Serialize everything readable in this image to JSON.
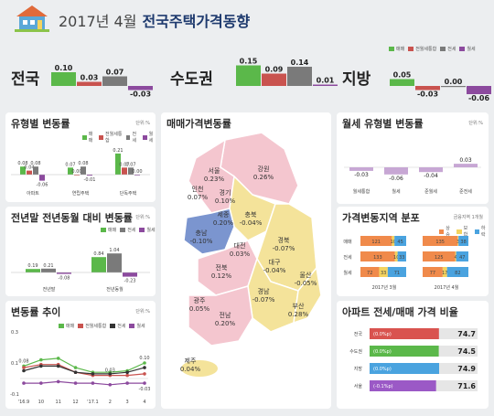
{
  "header": {
    "title_date": "2017년 4월",
    "title_main": "전국주택가격동향"
  },
  "legend_labels": [
    "매매",
    "전월세통합",
    "전세",
    "월세"
  ],
  "colors": {
    "maemae": "#5bb84a",
    "jeonwolse": "#c9534f",
    "jeonse": "#7a7a7a",
    "wolse": "#8c4a9e",
    "map_pink": "#f4c6cf",
    "map_yellow": "#f4e39a",
    "map_blue": "#7b95cf",
    "bg": "#eceef0"
  },
  "summary": [
    {
      "region": "전국",
      "values": [
        0.1,
        0.03,
        0.07,
        -0.03
      ],
      "labels": [
        "0.10",
        "0.03",
        "0.07",
        "-0.03"
      ]
    },
    {
      "region": "수도권",
      "values": [
        0.15,
        0.09,
        0.14,
        0.01
      ],
      "labels": [
        "0.15",
        "0.09",
        "0.14",
        "0.01"
      ]
    },
    {
      "region": "지방",
      "values": [
        0.05,
        -0.03,
        0.0,
        -0.06
      ],
      "labels": [
        "0.05",
        "-0.03",
        "0.00",
        "-0.06"
      ]
    }
  ],
  "panels": {
    "type_change": {
      "title": "유형별 변동률",
      "unit": "단위:%"
    },
    "yearend": {
      "title": "전년말 전년동월 대비 변동률",
      "unit": "단위:%"
    },
    "trend": {
      "title": "변동률 추이",
      "unit": "단위:%"
    },
    "map": {
      "title": "매매가격변동률"
    },
    "wolse_type": {
      "title": "월세 유형별 변동률",
      "unit": "단위:%"
    },
    "distribution": {
      "title": "가격변동지역 분포",
      "unit": "금융지역 1개월"
    },
    "ratio": {
      "title": "아파트 전세/매매 가격 비율"
    }
  },
  "chart_data": [
    {
      "type": "bar",
      "title": "유형별 변동률",
      "categories": [
        "아파트",
        "연립주택",
        "단독주택"
      ],
      "series": [
        {
          "name": "매매",
          "values": [
            0.08,
            0.07,
            0.21
          ]
        },
        {
          "name": "전월세통합",
          "values": [
            0.04,
            0.0,
            0.07
          ]
        },
        {
          "name": "전세",
          "values": [
            0.08,
            0.08,
            0.07
          ]
        },
        {
          "name": "월세",
          "values": [
            -0.06,
            -0.01,
            0.0
          ]
        }
      ],
      "labels": [
        [
          "0.08",
          "0.04",
          "0.08",
          "-0.06"
        ],
        [
          "0.07",
          "0.00",
          "0.08",
          "-0.01"
        ],
        [
          "0.21",
          "0.07",
          "0.07",
          "0.00"
        ]
      ]
    },
    {
      "type": "bar",
      "title": "전년말 전년동월 대비 변동률",
      "categories": [
        "전년말",
        "전년동월"
      ],
      "series": [
        {
          "name": "매매",
          "values": [
            0.19,
            0.84
          ]
        },
        {
          "name": "전세",
          "values": [
            0.21,
            1.04
          ]
        },
        {
          "name": "월세",
          "values": [
            -0.08,
            -0.23
          ]
        }
      ],
      "labels": [
        [
          "0.19",
          "0.21",
          "-0.08"
        ],
        [
          "0.84",
          "1.04",
          "-0.23"
        ]
      ]
    },
    {
      "type": "line",
      "title": "변동률 추이",
      "x": [
        "'16.9",
        "10",
        "11",
        "12",
        "'17.1",
        "2",
        "3",
        "4"
      ],
      "ylim": [
        -0.1,
        0.3
      ],
      "yticks": [
        "0.3",
        "0.1",
        "-0.1"
      ],
      "series": [
        {
          "name": "매매",
          "values": [
            0.08,
            0.12,
            0.13,
            0.07,
            0.04,
            0.04,
            0.05,
            0.1
          ]
        },
        {
          "name": "전월세통합",
          "values": [
            0.07,
            0.09,
            0.09,
            0.04,
            0.02,
            0.02,
            0.02,
            0.03
          ]
        },
        {
          "name": "전세",
          "values": [
            0.05,
            0.08,
            0.08,
            0.04,
            0.03,
            0.03,
            0.04,
            0.07
          ]
        },
        {
          "name": "월세",
          "values": [
            -0.03,
            -0.03,
            -0.02,
            -0.03,
            -0.03,
            -0.04,
            -0.03,
            -0.03
          ]
        }
      ],
      "labels": {
        "first": "0.08",
        "last": "0.10",
        "last_low": "-0.03",
        "mid": "0.03"
      }
    },
    {
      "type": "bar",
      "title": "월세 유형별 변동률",
      "categories": [
        "월세통합",
        "월세",
        "준월세",
        "준전세"
      ],
      "values": [
        -0.03,
        -0.06,
        -0.04,
        0.03
      ],
      "labels": [
        "-0.03",
        "-0.06",
        "-0.04",
        "0.03"
      ]
    },
    {
      "type": "bar",
      "title": "가격변동지역 분포",
      "legend": [
        "상승",
        "보합",
        "하락"
      ],
      "rows": [
        "매매",
        "전세",
        "월세"
      ],
      "columns": [
        "2017년 3월",
        "2017년 4월"
      ],
      "values": [
        [
          [
            121,
            10,
            45
          ],
          [
            135,
            3,
            38
          ]
        ],
        [
          [
            133,
            10,
            33
          ],
          [
            125,
            4,
            47
          ]
        ],
        [
          [
            72,
            33,
            71
          ],
          [
            77,
            17,
            82
          ]
        ]
      ]
    },
    {
      "type": "bar",
      "title": "아파트 전세/매매 가격 비율",
      "categories": [
        "전국",
        "수도권",
        "지방",
        "서울"
      ],
      "values": [
        74.7,
        74.5,
        74.9,
        71.6
      ],
      "value_labels": [
        "74.7",
        "74.5",
        "74.9",
        "71.6"
      ],
      "change_labels": [
        "(0.0%p)",
        "(0.0%p)",
        "(0.0%p)",
        "(-0.1%p)"
      ],
      "change_colors": [
        "#d9534f",
        "#5bb84a",
        "#4aa3df",
        "#9b59c6"
      ]
    }
  ],
  "map": {
    "regions": [
      {
        "name": "서울",
        "value": "0.23%"
      },
      {
        "name": "강원",
        "value": "0.26%"
      },
      {
        "name": "인천",
        "value": "0.07%"
      },
      {
        "name": "경기",
        "value": "0.10%"
      },
      {
        "name": "충북",
        "value": "-0.04%"
      },
      {
        "name": "세종",
        "value": "0.20%"
      },
      {
        "name": "충남",
        "value": "-0.10%"
      },
      {
        "name": "대전",
        "value": "0.03%"
      },
      {
        "name": "경북",
        "value": "-0.07%"
      },
      {
        "name": "대구",
        "value": "-0.04%"
      },
      {
        "name": "전북",
        "value": "0.12%"
      },
      {
        "name": "울산",
        "value": "-0.05%"
      },
      {
        "name": "경남",
        "value": "-0.07%"
      },
      {
        "name": "부산",
        "value": "0.28%"
      },
      {
        "name": "광주",
        "value": "0.05%"
      },
      {
        "name": "전남",
        "value": "0.20%"
      },
      {
        "name": "제주",
        "value": "0.04%"
      }
    ]
  }
}
